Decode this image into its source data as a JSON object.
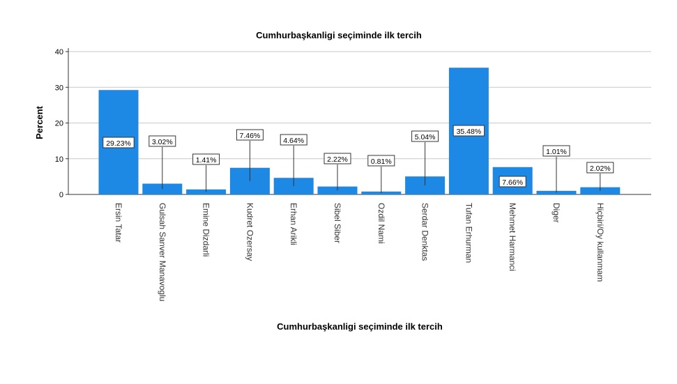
{
  "chart_data": {
    "type": "bar",
    "title": "Cumhurbaşkanligi seçiminde ilk tercih",
    "xlabel": "Cumhurbaşkanligi seçiminde ilk tercih",
    "ylabel": "Percent",
    "ylim": [
      0,
      40
    ],
    "yticks": [
      0,
      10,
      20,
      30,
      40
    ],
    "grid": true,
    "bar_color": "#1e88e5",
    "categories": [
      "Ersin Tatar",
      "Gulsah Sanver Manavoglu",
      "Emine Dizdarli",
      "Kudret Ozersay",
      "Erhan Arikli",
      "Sibel Siber",
      "Ozdil Nami",
      "Serdar Denktas",
      "Tufan Erhurman",
      "Mehmet Harmanci",
      "Diger",
      "Hiçbiri/Oy kullanmam"
    ],
    "values": [
      29.23,
      3.02,
      1.41,
      7.46,
      4.64,
      2.22,
      0.81,
      5.04,
      35.48,
      7.66,
      1.01,
      2.02
    ],
    "data_labels": [
      "29.23%",
      "3.02%",
      "1.41%",
      "7.46%",
      "4.64%",
      "2.22%",
      "0.81%",
      "5.04%",
      "35.48%",
      "7.66%",
      "1.01%",
      "2.02%"
    ]
  }
}
